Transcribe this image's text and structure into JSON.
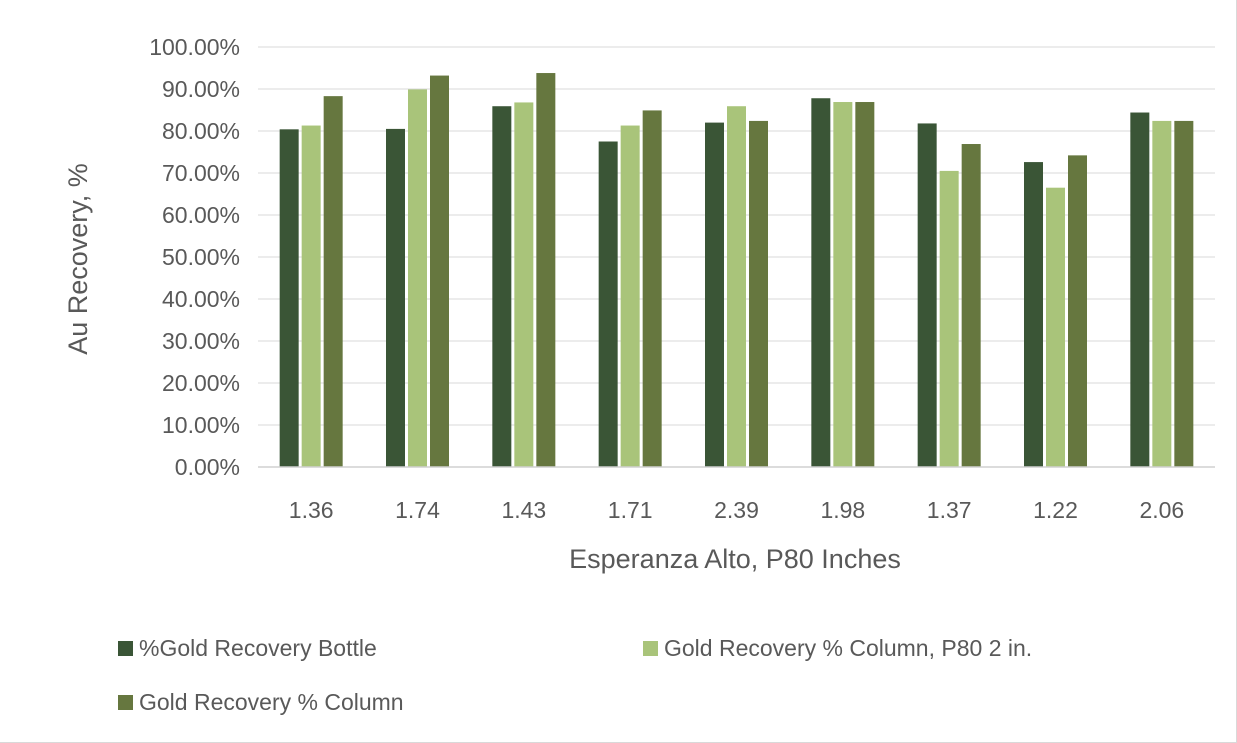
{
  "chart_data": {
    "type": "bar",
    "title": "",
    "xlabel": "Esperanza Alto, P80 Inches",
    "ylabel": "Au Recovery, %",
    "ylim": [
      0,
      100
    ],
    "ytick_step": 10,
    "ytick_format": "percent_2dp",
    "grid": true,
    "legend_position": "bottom",
    "categories": [
      "1.36",
      "1.74",
      "1.43",
      "1.71",
      "2.39",
      "1.98",
      "1.37",
      "1.22",
      "2.06"
    ],
    "series": [
      {
        "name": "%Gold Recovery Bottle",
        "color": "#3a5536",
        "values": [
          80.4,
          80.5,
          85.9,
          77.5,
          82.0,
          87.8,
          81.8,
          72.6,
          84.4
        ]
      },
      {
        "name": "Gold Recovery % Column, P80 2 in.",
        "color": "#a9c47a",
        "values": [
          81.3,
          89.9,
          86.8,
          81.3,
          85.9,
          86.9,
          70.5,
          66.5,
          82.4
        ]
      },
      {
        "name": "Gold Recovery % Column",
        "color": "#66773f",
        "values": [
          88.3,
          93.2,
          93.8,
          84.9,
          82.4,
          86.9,
          76.9,
          74.2,
          82.4
        ]
      }
    ]
  }
}
